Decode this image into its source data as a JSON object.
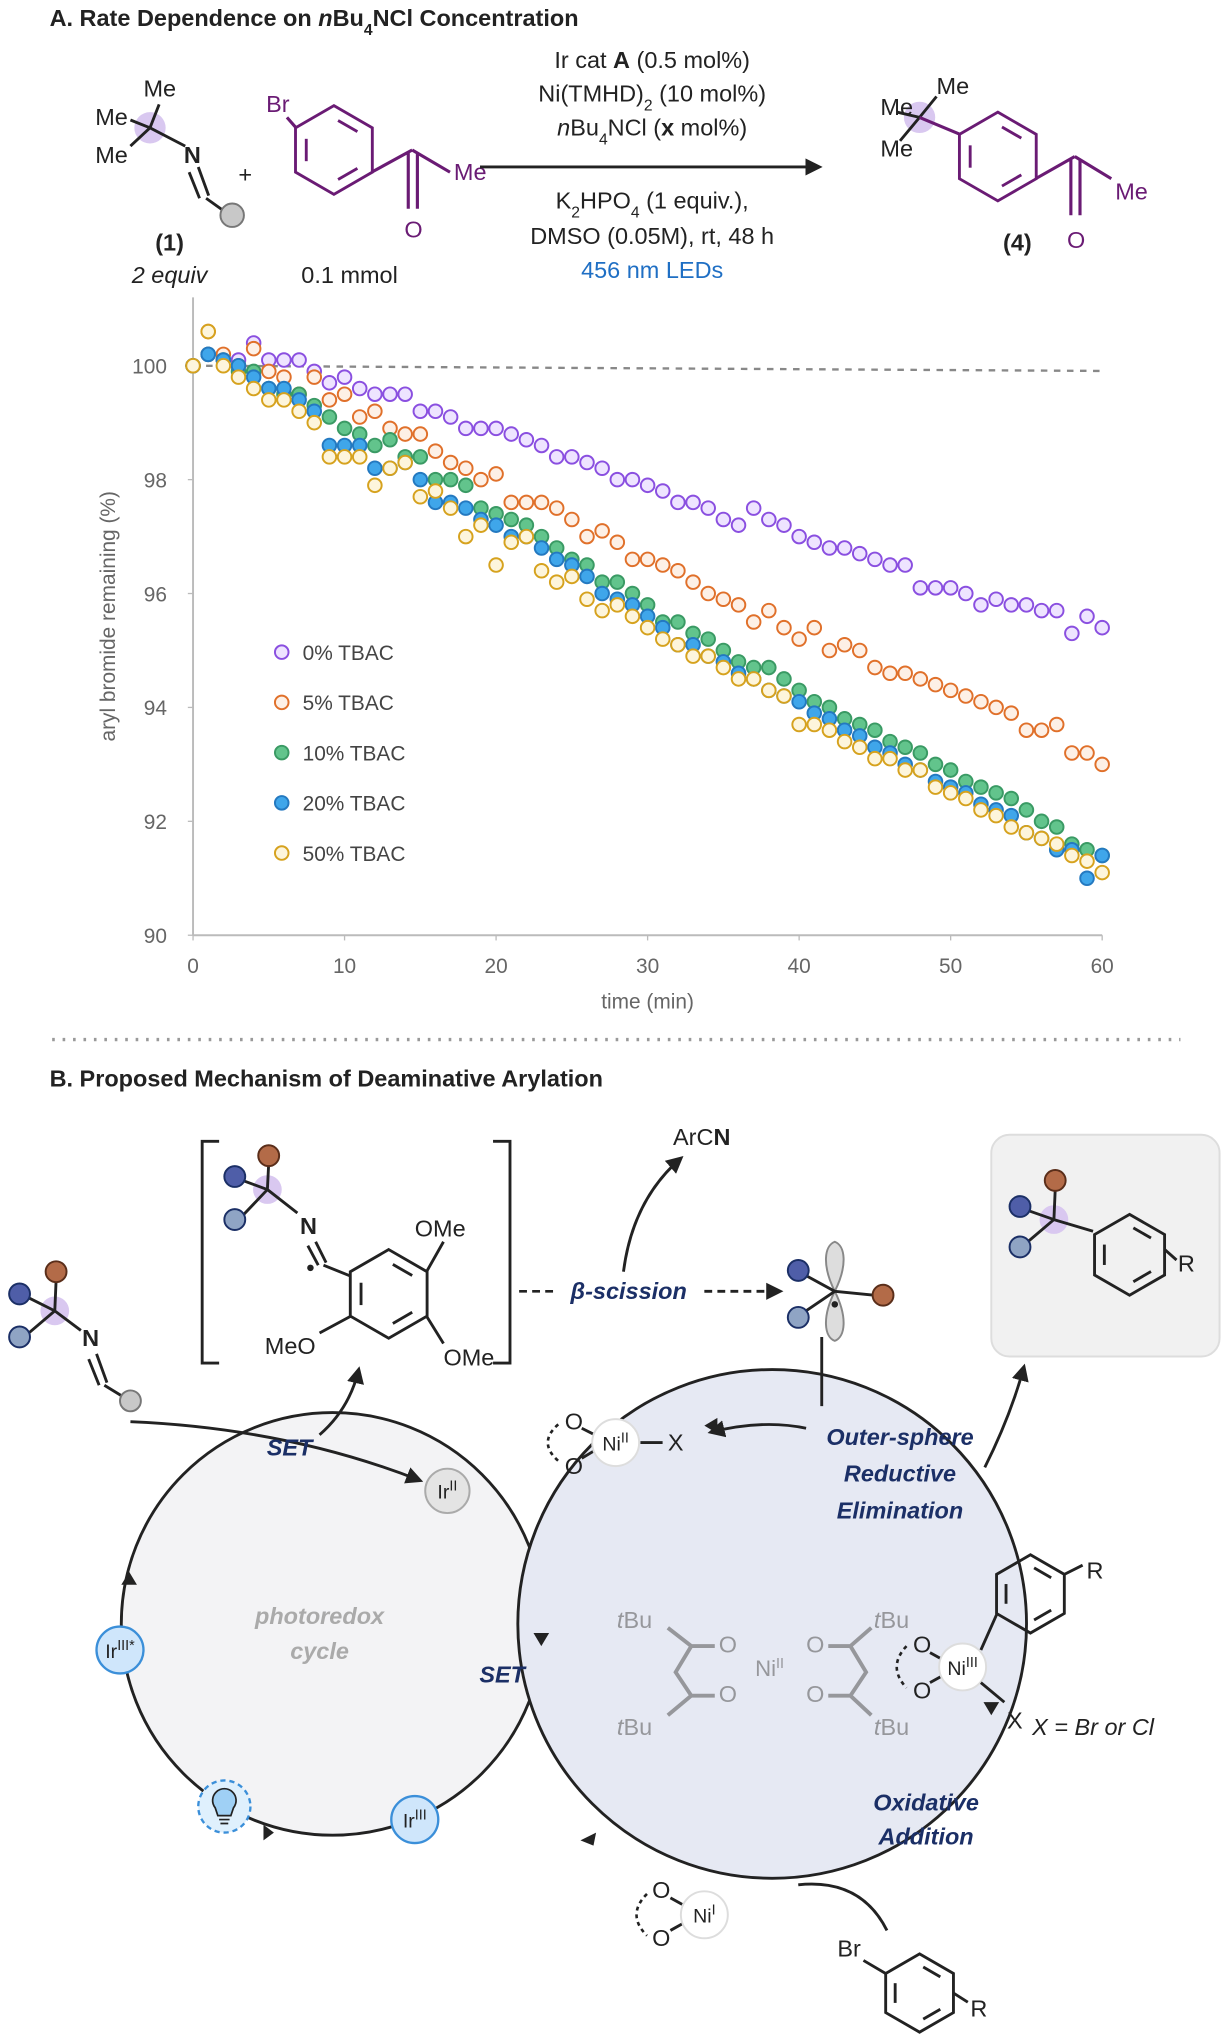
{
  "section_a": {
    "title": [
      "A. Rate Dependence on ",
      "n",
      "Bu",
      "4",
      "NCl Concentration"
    ]
  },
  "reaction": {
    "reagent_1": {
      "me_labels": [
        "Me",
        "Me"
      ],
      "n": "N",
      "label": "(1)",
      "amount": "2 equiv"
    },
    "plus": "+",
    "aryl_bromide": {
      "br": "Br",
      "me": "Me",
      "o": "O",
      "amount": "0.1 mmol"
    },
    "conditions": [
      [
        "Ir cat ",
        "A",
        " (0.5 mol%)"
      ],
      [
        "Ni(TMHD)",
        "2",
        " (10 mol%)"
      ],
      [
        "n",
        "Bu",
        "4",
        "NCl (",
        "x",
        " mol%)"
      ],
      [
        "K",
        "2",
        "HPO",
        "4",
        " (1 equiv.),"
      ],
      [
        "DMSO (0.05M), rt, 48 h"
      ],
      [
        "456 nm LEDs"
      ]
    ],
    "product": {
      "me_labels": [
        "Me",
        "Me",
        "Me"
      ],
      "o": "O",
      "label": "(4)"
    }
  },
  "chart_data": {
    "type": "scatter",
    "x_label": "time (min)",
    "y_label": "aryl bromide remaining (%)",
    "x": [
      0,
      1,
      2,
      3,
      4,
      5,
      6,
      7,
      8,
      9,
      10,
      11,
      12,
      13,
      14,
      15,
      16,
      17,
      18,
      19,
      20,
      21,
      22,
      23,
      24,
      25,
      26,
      27,
      28,
      29,
      30,
      31,
      32,
      33,
      34,
      35,
      36,
      37,
      38,
      39,
      40,
      41,
      42,
      43,
      44,
      45,
      46,
      47,
      48,
      49,
      50,
      51,
      52,
      53,
      54,
      55,
      56,
      57,
      58,
      59,
      60
    ],
    "series": [
      {
        "name": "0% TBAC",
        "color": "#8a4fe0",
        "fill": "#eee4ff",
        "values": [
          100.0,
          100.2,
          100.1,
          100.1,
          100.4,
          100.1,
          100.1,
          100.1,
          99.9,
          99.7,
          99.8,
          99.6,
          99.5,
          99.5,
          99.5,
          99.2,
          99.2,
          99.1,
          98.9,
          98.9,
          98.9,
          98.8,
          98.7,
          98.6,
          98.4,
          98.4,
          98.3,
          98.2,
          98.0,
          98.0,
          97.9,
          97.8,
          97.6,
          97.6,
          97.5,
          97.3,
          97.2,
          97.5,
          97.3,
          97.2,
          97.0,
          96.9,
          96.8,
          96.8,
          96.7,
          96.6,
          96.5,
          96.5,
          96.1,
          96.1,
          96.1,
          96.0,
          95.8,
          95.9,
          95.8,
          95.8,
          95.7,
          95.7,
          95.3,
          95.6,
          95.4
        ]
      },
      {
        "name": "5% TBAC",
        "color": "#e0702a",
        "fill": "#fdf0e6",
        "values": [
          100.0,
          100.6,
          100.2,
          100.0,
          100.3,
          99.9,
          99.8,
          99.5,
          99.8,
          99.4,
          99.5,
          99.1,
          99.2,
          98.9,
          98.8,
          98.8,
          98.5,
          98.3,
          98.2,
          98.0,
          98.1,
          97.6,
          97.6,
          97.6,
          97.5,
          97.3,
          97.0,
          97.1,
          96.9,
          96.6,
          96.6,
          96.5,
          96.4,
          96.2,
          96.0,
          95.9,
          95.8,
          95.5,
          95.7,
          95.4,
          95.2,
          95.4,
          95.0,
          95.1,
          95.0,
          94.7,
          94.6,
          94.6,
          94.5,
          94.4,
          94.3,
          94.2,
          94.1,
          94.0,
          93.9,
          93.6,
          93.6,
          93.7,
          93.2,
          93.2,
          93.0
        ]
      },
      {
        "name": "10% TBAC",
        "color": "#3a9a64",
        "fill": "#62c48c",
        "values": [
          100.0,
          100.2,
          100.1,
          99.9,
          99.9,
          99.6,
          99.5,
          99.5,
          99.3,
          99.1,
          98.9,
          98.8,
          98.6,
          98.7,
          98.4,
          98.4,
          98.0,
          98.0,
          97.9,
          97.5,
          97.4,
          97.3,
          97.2,
          97.0,
          96.8,
          96.6,
          96.5,
          96.2,
          96.2,
          96.0,
          95.8,
          95.5,
          95.5,
          95.3,
          95.2,
          95.0,
          94.8,
          94.7,
          94.7,
          94.5,
          94.3,
          94.1,
          94.0,
          93.8,
          93.7,
          93.6,
          93.4,
          93.3,
          93.2,
          93.0,
          92.9,
          92.7,
          92.6,
          92.5,
          92.4,
          92.2,
          92.0,
          91.9,
          91.6,
          91.5,
          91.4
        ]
      },
      {
        "name": "20% TBAC",
        "color": "#2479c0",
        "fill": "#3fa6ea",
        "values": [
          100.0,
          100.2,
          100.1,
          100.0,
          99.8,
          99.6,
          99.6,
          99.4,
          99.2,
          98.6,
          98.6,
          98.6,
          98.2,
          98.2,
          98.3,
          98.0,
          97.6,
          97.6,
          97.5,
          97.3,
          97.2,
          97.0,
          97.0,
          96.8,
          96.6,
          96.5,
          96.3,
          96.0,
          95.9,
          95.8,
          95.6,
          95.4,
          95.1,
          95.1,
          94.9,
          94.8,
          94.6,
          94.5,
          94.3,
          94.2,
          94.1,
          93.9,
          93.8,
          93.6,
          93.5,
          93.3,
          93.2,
          93.0,
          92.9,
          92.7,
          92.6,
          92.5,
          92.3,
          92.2,
          92.1,
          91.8,
          91.7,
          91.5,
          91.5,
          91.0,
          91.4
        ]
      },
      {
        "name": "50% TBAC",
        "color": "#d6a21e",
        "fill": "#fdf5dc",
        "values": [
          100.0,
          100.6,
          100.0,
          99.8,
          99.6,
          99.4,
          99.4,
          99.2,
          99.0,
          98.4,
          98.4,
          98.4,
          97.9,
          98.2,
          98.3,
          97.7,
          97.8,
          97.5,
          97.0,
          97.2,
          96.5,
          96.9,
          97.0,
          96.4,
          96.2,
          96.3,
          95.9,
          95.7,
          95.8,
          95.6,
          95.4,
          95.2,
          95.1,
          94.9,
          94.9,
          94.7,
          94.5,
          94.5,
          94.3,
          94.2,
          93.7,
          93.7,
          93.6,
          93.4,
          93.3,
          93.1,
          93.1,
          92.9,
          92.9,
          92.6,
          92.5,
          92.4,
          92.2,
          92.1,
          91.9,
          91.8,
          91.7,
          91.6,
          91.4,
          91.3,
          91.1
        ]
      }
    ],
    "xlim": [
      0,
      60
    ],
    "ylim": [
      90,
      101.2
    ],
    "xticks": [
      0,
      10,
      20,
      30,
      40,
      50,
      60
    ],
    "yticks": [
      90,
      92,
      94,
      96,
      98,
      100
    ],
    "reference_line": 100,
    "grid": false,
    "legend": "left"
  },
  "section_b": {
    "title": "B. Proposed Mechanism of Deaminative Arylation",
    "substrate_n": "N",
    "radical_intermediate": {
      "n": "N",
      "ome": [
        "OMe",
        "MeO",
        "OMe"
      ]
    },
    "nitrile": [
      "ArC",
      "N"
    ],
    "beta_scission": "β-scission",
    "product_r": "R",
    "set": [
      "SET",
      "SET"
    ],
    "ir_ii": [
      "Ir",
      "II"
    ],
    "ir_iii_star": [
      "Ir",
      "III*"
    ],
    "ir_iii": [
      "Ir",
      "III"
    ],
    "photoredox": [
      "photoredox",
      "cycle"
    ],
    "ni_ii_x": {
      "o": [
        "O",
        "O"
      ],
      "ni": [
        "Ni",
        "II"
      ],
      "x": "X"
    },
    "outer_sphere": [
      "Outer-sphere",
      "Reductive",
      "Elimination"
    ],
    "ni_iii": {
      "o": [
        "O",
        "O"
      ],
      "ni": [
        "Ni",
        "III"
      ],
      "x": "X",
      "r": "R"
    },
    "x_note": "X = Br or Cl",
    "ni_tmhd": {
      "tbu": [
        [
          "t",
          "Bu"
        ],
        [
          "t",
          "Bu"
        ],
        [
          "t",
          "Bu"
        ],
        [
          "t",
          "Bu"
        ]
      ],
      "o": [
        "O",
        "O",
        "O",
        "O"
      ],
      "ni": [
        "Ni",
        "II"
      ]
    },
    "oxidative_addition": [
      "Oxidative",
      "Addition"
    ],
    "ni_i": {
      "o": [
        "O",
        "O"
      ],
      "ni": [
        "Ni",
        "I"
      ]
    },
    "aryl_bromide": {
      "br": "Br",
      "r": "R"
    }
  }
}
